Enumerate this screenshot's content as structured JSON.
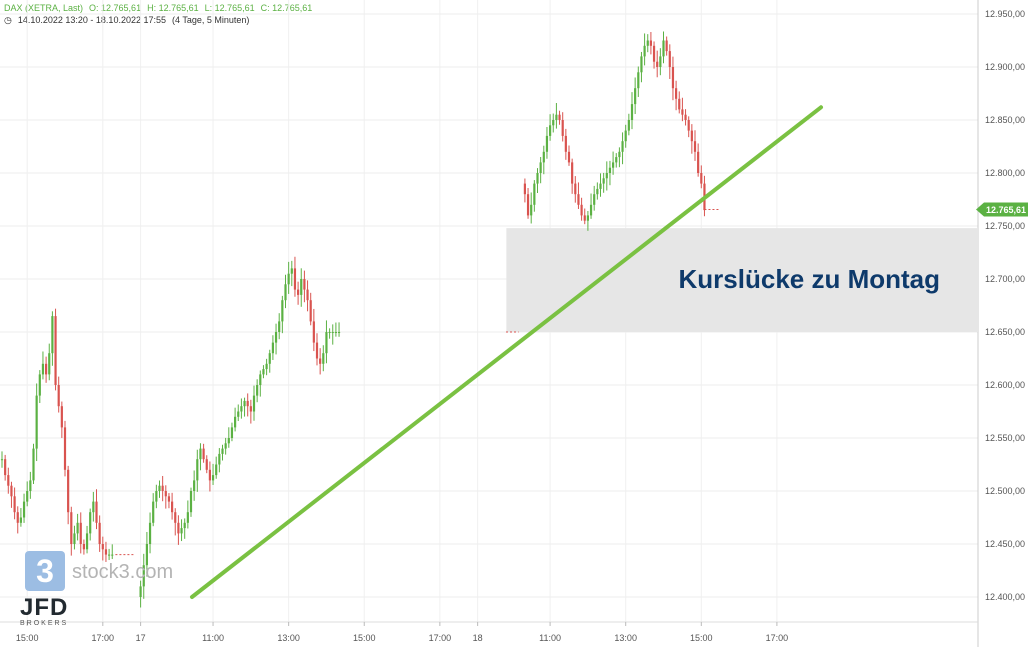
{
  "header": {
    "instrument": "DAX (XETRA, Last)",
    "open": "O: 12.765,61",
    "high": "H: 12.765,61",
    "low": "L: 12.765,61",
    "close": "C: 12.765,61",
    "range": "14.10.2022 13:20 - 18.10.2022 17:55",
    "period": "(4 Tage, 5 Minuten)"
  },
  "watermark": {
    "brand": "stock3.com",
    "brand_digit": "3",
    "broker": "JFD",
    "broker_sub": "BROKERS"
  },
  "colors": {
    "up": "#5bb143",
    "down": "#d9534f",
    "trendline": "#7ac142",
    "gap_fill": "#e6e6e6",
    "annotation": "#0e3a6b",
    "price_label": "#5bb143"
  },
  "chart_data": {
    "type": "candlestick",
    "ylim": [
      12375,
      12960
    ],
    "y_ticks": [
      12400,
      12450,
      12500,
      12550,
      12600,
      12650,
      12700,
      12750,
      12800,
      12850,
      12900,
      12950
    ],
    "y_tick_labels": [
      "12.400,00",
      "12.450,00",
      "12.500,00",
      "12.550,00",
      "12.600,00",
      "12.650,00",
      "12.700,00",
      "12.750,00",
      "12.800,00",
      "12.850,00",
      "12.900,00",
      "12.950,00"
    ],
    "x_ticks": [
      {
        "bar": 8,
        "label": "15:00"
      },
      {
        "bar": 32,
        "label": "17:00"
      },
      {
        "bar": 44,
        "label": "17"
      },
      {
        "bar": 67,
        "label": "11:00"
      },
      {
        "bar": 91,
        "label": "13:00"
      },
      {
        "bar": 115,
        "label": "15:00"
      },
      {
        "bar": 139,
        "label": "17:00"
      },
      {
        "bar": 151,
        "label": "18"
      },
      {
        "bar": 174,
        "label": "11:00"
      },
      {
        "bar": 198,
        "label": "13:00"
      },
      {
        "bar": 222,
        "label": "15:00"
      },
      {
        "bar": 246,
        "label": "17:00"
      }
    ],
    "last_price_label": "12.765,61",
    "last_price": 12765.61,
    "gap": {
      "from": 12650,
      "to": 12748,
      "bar_start": 149,
      "bar_end": 330,
      "label": "Kurslücke zu Montag"
    },
    "trendline": {
      "bar_start": 44,
      "value_start": 12400,
      "bar_end": 250,
      "value_end": 12862
    },
    "closes": [
      12530,
      12515,
      12505,
      12495,
      12480,
      12470,
      12475,
      12490,
      12500,
      12510,
      12540,
      12590,
      12610,
      12620,
      12610,
      12630,
      12665,
      12600,
      12580,
      12560,
      12520,
      12480,
      12450,
      12460,
      12470,
      12450,
      12445,
      12460,
      12480,
      12490,
      12470,
      12450,
      12445,
      12440,
      12440,
      12440,
      12440,
      12440,
      12440,
      12440,
      12440,
      12440,
      12440,
      12440,
      12410,
      12430,
      12450,
      12470,
      12490,
      12500,
      12505,
      12500,
      12495,
      12490,
      12480,
      12470,
      12460,
      12465,
      12470,
      12480,
      12500,
      12510,
      12530,
      12540,
      12530,
      12520,
      12510,
      12515,
      12525,
      12535,
      12540,
      12545,
      12550,
      12560,
      12570,
      12575,
      12580,
      12585,
      12580,
      12575,
      12590,
      12600,
      12610,
      12615,
      12620,
      12630,
      12640,
      12650,
      12660,
      12680,
      12695,
      12705,
      12710,
      12690,
      12685,
      12700,
      12690,
      12680,
      12660,
      12640,
      12625,
      12620,
      12630,
      12650,
      12650,
      12650,
      12650,
      12650,
      12650,
      12650,
      12650,
      12650,
      12650,
      12650,
      12650,
      12650,
      12650,
      12650,
      12650,
      12650,
      12650,
      12650,
      12650,
      12650,
      12650,
      12650,
      12650,
      12650,
      12650,
      12650,
      12650,
      12650,
      12650,
      12650,
      12650,
      12650,
      12650,
      12650,
      12650,
      12650,
      12650,
      12650,
      12650,
      12650,
      12650,
      12650,
      12650,
      12650,
      12650
    ],
    "session_b": [
      12780,
      12760,
      12770,
      12790,
      12800,
      12810,
      12820,
      12835,
      12845,
      12850,
      12855,
      12850,
      12835,
      12820,
      12810,
      12790,
      12780,
      12770,
      12760,
      12755,
      12760,
      12770,
      12780,
      12785,
      12790,
      12795,
      12800,
      12805,
      12810,
      12815,
      12820,
      12830,
      12840,
      12850,
      12865,
      12880,
      12895,
      12910,
      12920,
      12925,
      12920,
      12905,
      12900,
      12910,
      12925,
      12915,
      12900,
      12880,
      12870,
      12860,
      12855,
      12850,
      12840,
      12830,
      12820,
      12800,
      12790,
      12765
    ]
  }
}
